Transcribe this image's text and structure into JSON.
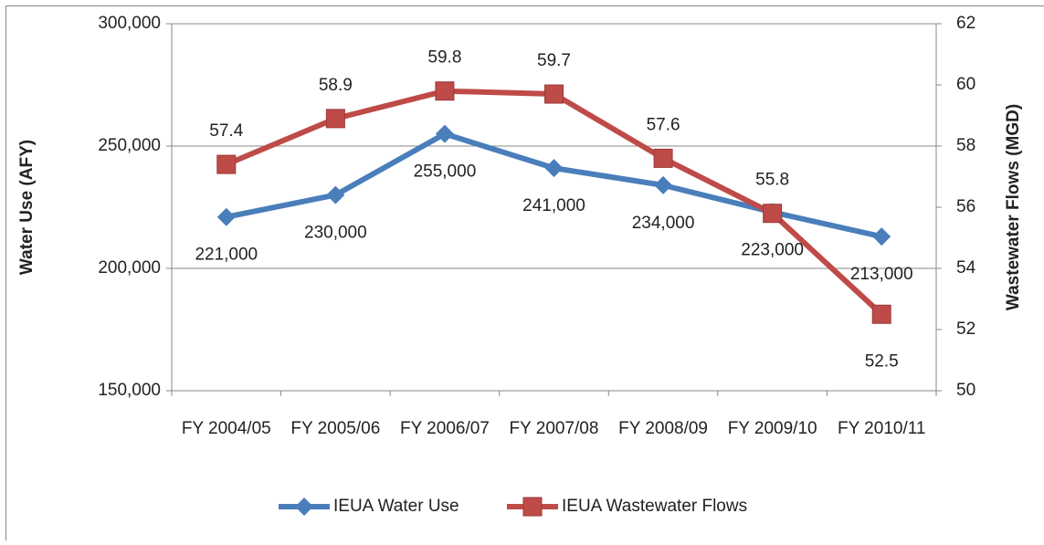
{
  "chart_data": {
    "type": "line",
    "categories": [
      "FY 2004/05",
      "FY 2005/06",
      "FY 2006/07",
      "FY 2007/08",
      "FY 2008/09",
      "FY 2009/10",
      "FY 2010/11"
    ],
    "y_label": "Water Use (AFY)",
    "y2_label": "Wastewater Flows (MGD)",
    "ylim": [
      150000,
      300000
    ],
    "yticks": [
      {
        "value": 150000,
        "label": "150,000"
      },
      {
        "value": 200000,
        "label": "200,000"
      },
      {
        "value": 250000,
        "label": "250,000"
      },
      {
        "value": 300000,
        "label": "300,000"
      }
    ],
    "y2lim": [
      50,
      62
    ],
    "y2ticks": [
      50,
      52,
      54,
      56,
      58,
      60,
      62
    ],
    "grid": true,
    "legend": "bottom",
    "series": [
      {
        "name": "IEUA Water Use",
        "color": "#4a7ebb",
        "marker": "diamond",
        "values": [
          221000,
          230000,
          255000,
          241000,
          234000,
          223000,
          213000
        ],
        "value_labels": [
          "221,000",
          "230,000",
          "255,000",
          "241,000",
          "234,000",
          "223,000",
          "213,000"
        ]
      },
      {
        "name": "IEUA Wastewater Flows",
        "color": "#be4b48",
        "marker": "square",
        "axis": "y2",
        "values": [
          57.4,
          58.9,
          59.8,
          59.7,
          57.6,
          55.8,
          52.5
        ]
      }
    ]
  }
}
